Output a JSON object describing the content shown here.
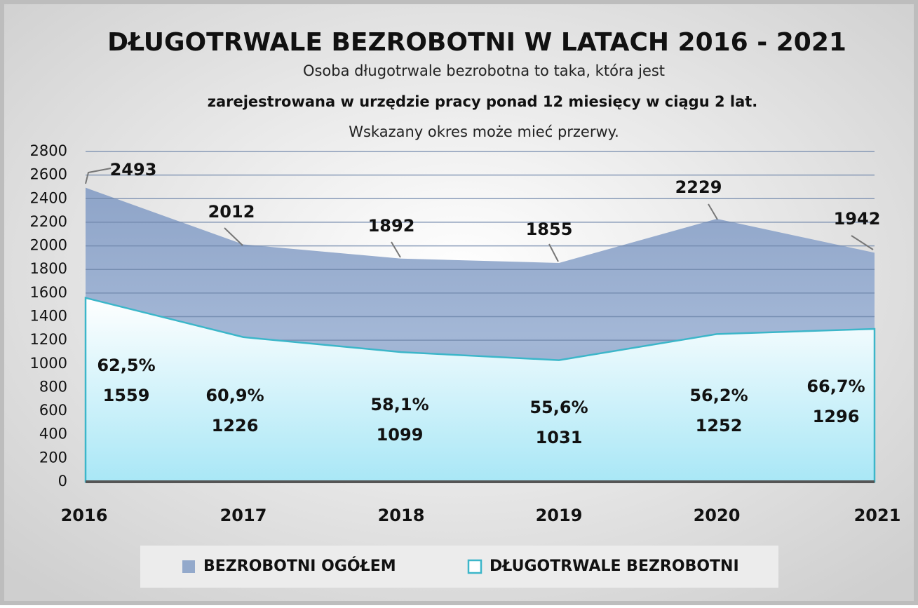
{
  "chart_data": {
    "type": "area",
    "title": "DŁUGOTRWALE BEZROBOTNI W LATACH 2016 - 2021",
    "subtitle_lines": [
      "Osoba długotrwale bezrobotna to taka, która jest",
      "zarejestrowana w urzędzie pracy ponad 12 miesięcy w ciągu 2 lat.",
      "Wskazany okres może mieć przerwy."
    ],
    "categories": [
      "2016",
      "2017",
      "2018",
      "2019",
      "2020",
      "2021"
    ],
    "series": [
      {
        "name": "BEZROBOTNI OGÓŁEM",
        "color": "#93a9cb",
        "values": [
          2493,
          2012,
          1892,
          1855,
          2229,
          1942
        ]
      },
      {
        "name": "DŁUGOTRWALE BEZROBOTNI",
        "color": "#a9e7f6",
        "values": [
          1559,
          1226,
          1099,
          1031,
          1252,
          1296
        ],
        "share_labels": [
          "62,5%",
          "60,9%",
          "58,1%",
          "55,6%",
          "56,2%",
          "66,7%"
        ]
      }
    ],
    "ylim": [
      0,
      2800
    ],
    "yticks": [
      0,
      200,
      400,
      600,
      800,
      1000,
      1200,
      1400,
      1600,
      1800,
      2000,
      2200,
      2400,
      2600,
      2800
    ],
    "grid": true,
    "legend": "bottom"
  }
}
